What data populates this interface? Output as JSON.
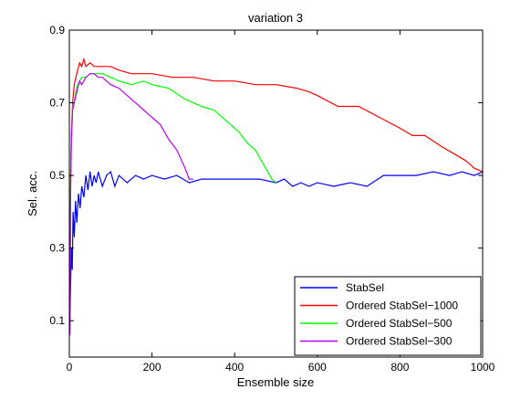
{
  "chart_data": {
    "type": "line",
    "title": "variation 3",
    "xlabel": "Ensemble size",
    "ylabel": "Sel. acc.",
    "xlim": [
      0,
      1000
    ],
    "ylim": [
      0,
      0.9
    ],
    "xticks": [
      0,
      200,
      400,
      600,
      800,
      1000
    ],
    "yticks": [
      0.1,
      0.3,
      0.5,
      0.7,
      0.9
    ],
    "xtick_labels": [
      "0",
      "200",
      "400",
      "600",
      "800",
      "1000"
    ],
    "ytick_labels": [
      "0.1",
      "0.3",
      "0.5",
      "0.7",
      "0.9"
    ],
    "grid": false,
    "legend_position": "bottom-right",
    "series": [
      {
        "name": "StabSel",
        "color": "#0000ff",
        "x": [
          1,
          3,
          5,
          7,
          9,
          12,
          15,
          18,
          22,
          26,
          30,
          35,
          40,
          45,
          50,
          55,
          60,
          65,
          70,
          80,
          90,
          100,
          110,
          120,
          140,
          160,
          180,
          200,
          230,
          260,
          290,
          320,
          350,
          380,
          420,
          460,
          500,
          520,
          540,
          560,
          580,
          600,
          640,
          680,
          720,
          760,
          800,
          840,
          880,
          920,
          950,
          980,
          1000
        ],
        "y": [
          0.07,
          0.2,
          0.3,
          0.24,
          0.4,
          0.33,
          0.43,
          0.37,
          0.45,
          0.41,
          0.47,
          0.44,
          0.5,
          0.46,
          0.51,
          0.47,
          0.5,
          0.48,
          0.51,
          0.47,
          0.5,
          0.51,
          0.47,
          0.5,
          0.48,
          0.5,
          0.49,
          0.5,
          0.49,
          0.5,
          0.48,
          0.49,
          0.49,
          0.49,
          0.49,
          0.49,
          0.48,
          0.49,
          0.47,
          0.48,
          0.47,
          0.48,
          0.47,
          0.48,
          0.47,
          0.5,
          0.5,
          0.5,
          0.51,
          0.5,
          0.51,
          0.5,
          0.51
        ]
      },
      {
        "name": "Ordered StabSel−1000",
        "color": "#ff0000",
        "x": [
          1,
          3,
          5,
          8,
          12,
          16,
          20,
          25,
          30,
          35,
          40,
          50,
          60,
          80,
          100,
          120,
          150,
          200,
          250,
          300,
          350,
          400,
          450,
          500,
          550,
          580,
          600,
          650,
          700,
          750,
          800,
          830,
          860,
          900,
          930,
          960,
          980,
          1000
        ],
        "y": [
          0.06,
          0.5,
          0.62,
          0.7,
          0.75,
          0.77,
          0.79,
          0.81,
          0.8,
          0.82,
          0.8,
          0.81,
          0.8,
          0.8,
          0.8,
          0.79,
          0.78,
          0.78,
          0.77,
          0.77,
          0.76,
          0.76,
          0.75,
          0.75,
          0.74,
          0.73,
          0.72,
          0.69,
          0.69,
          0.66,
          0.63,
          0.61,
          0.61,
          0.58,
          0.56,
          0.54,
          0.52,
          0.51
        ]
      },
      {
        "name": "Ordered StabSel−500",
        "color": "#00ff00",
        "x": [
          1,
          3,
          5,
          8,
          12,
          16,
          20,
          25,
          30,
          40,
          50,
          60,
          80,
          100,
          120,
          150,
          180,
          200,
          240,
          280,
          300,
          320,
          350,
          380,
          410,
          430,
          450,
          470,
          480,
          490,
          500
        ],
        "y": [
          0.06,
          0.48,
          0.6,
          0.69,
          0.7,
          0.73,
          0.75,
          0.76,
          0.77,
          0.77,
          0.78,
          0.78,
          0.78,
          0.77,
          0.76,
          0.75,
          0.76,
          0.75,
          0.74,
          0.71,
          0.7,
          0.69,
          0.68,
          0.65,
          0.62,
          0.59,
          0.57,
          0.53,
          0.51,
          0.49,
          0.48
        ]
      },
      {
        "name": "Ordered StabSel−300",
        "color": "#bf00ff",
        "x": [
          1,
          3,
          5,
          8,
          12,
          16,
          20,
          25,
          30,
          40,
          50,
          60,
          70,
          80,
          100,
          120,
          140,
          160,
          180,
          200,
          220,
          240,
          260,
          280,
          290,
          300
        ],
        "y": [
          0.06,
          0.45,
          0.6,
          0.68,
          0.7,
          0.72,
          0.74,
          0.76,
          0.75,
          0.77,
          0.78,
          0.78,
          0.77,
          0.77,
          0.75,
          0.74,
          0.72,
          0.7,
          0.68,
          0.66,
          0.64,
          0.6,
          0.57,
          0.52,
          0.49,
          0.49
        ]
      }
    ]
  }
}
